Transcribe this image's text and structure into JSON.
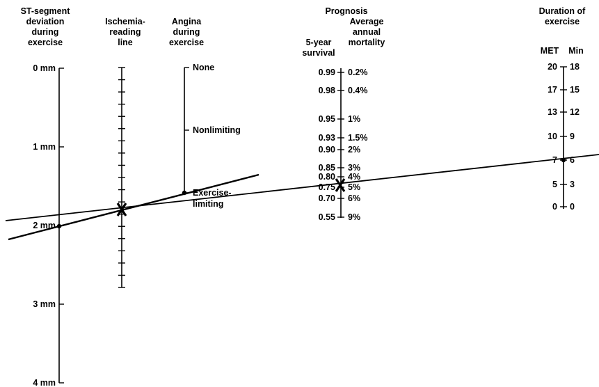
{
  "headers": {
    "st_deviation": [
      "ST-segment",
      "deviation",
      "during",
      "exercise"
    ],
    "ischemia": [
      "Ischemia-",
      "reading",
      "line"
    ],
    "angina": [
      "Angina",
      "during",
      "exercise"
    ],
    "prognosis_title": "Prognosis",
    "survival": [
      "5-year",
      "survival"
    ],
    "mortality": [
      "Average",
      "annual",
      "mortality"
    ],
    "duration": [
      "Duration of",
      "exercise"
    ],
    "met_label": "MET",
    "min_label": "Min"
  },
  "st_axis": {
    "labels": [
      "0 mm",
      "1 mm",
      "2 mm",
      "3 mm",
      "4 mm"
    ]
  },
  "angina_axis": {
    "labels": [
      "None",
      "Nonlimiting",
      "Exercise-\nlimiting"
    ],
    "label_lines": [
      [
        "None"
      ],
      [
        "Nonlimiting"
      ],
      [
        "Exercise-",
        "limiting"
      ]
    ]
  },
  "prognosis_axis": {
    "survival": [
      "0.99",
      "0.98",
      "0.95",
      "0.93",
      "0.90",
      "0.85",
      "0.80",
      "0.75",
      "0.70",
      "0.55"
    ],
    "mortality": [
      "0.2%",
      "0.4%",
      "1%",
      "1.5%",
      "2%",
      "3%",
      "4%",
      "5%",
      "6%",
      "9%"
    ]
  },
  "duration_axis": {
    "met": [
      "20",
      "17",
      "13",
      "10",
      "7",
      "5",
      "0"
    ],
    "min": [
      "18",
      "15",
      "12",
      "9",
      "6",
      "3",
      "0"
    ]
  },
  "example_reading": {
    "st_deviation_mm": 2,
    "angina": "Exercise-limiting",
    "ischemia_marker": "X",
    "duration_met": 7,
    "duration_min": 6,
    "prognosis_marker": "X",
    "five_year_survival": 0.75,
    "annual_mortality": "5%"
  }
}
